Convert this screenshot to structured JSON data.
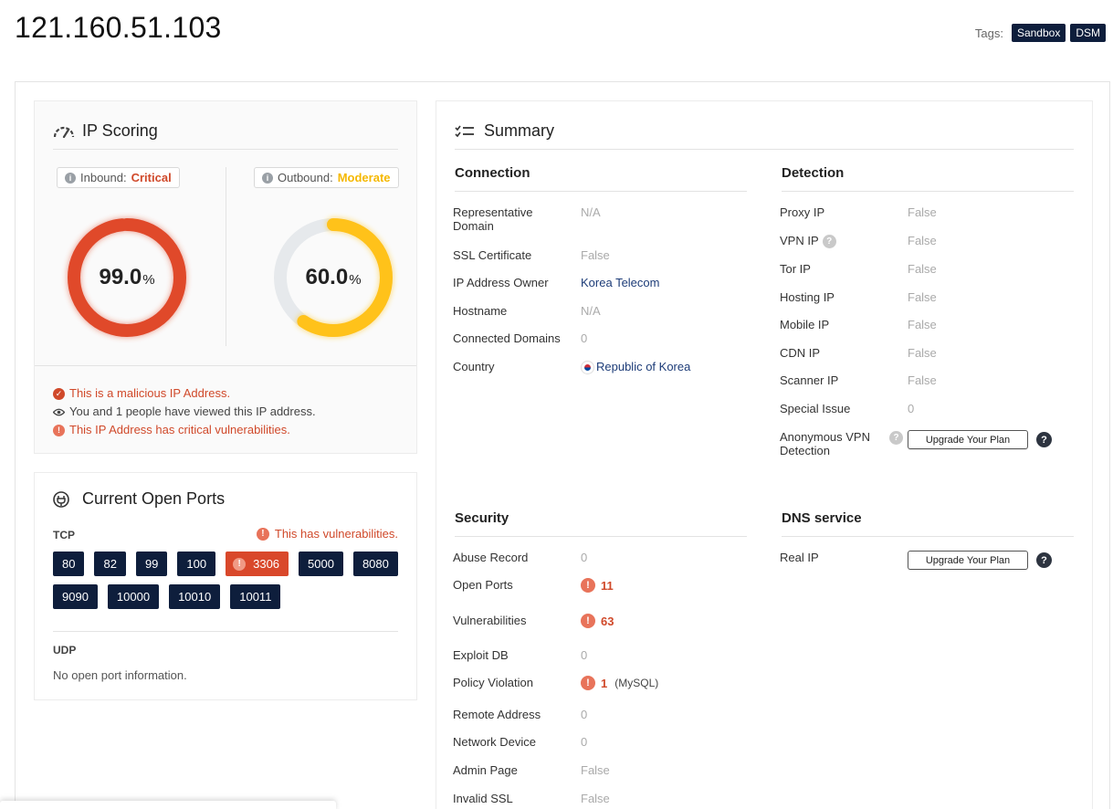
{
  "page": {
    "title": "121.160.51.103"
  },
  "tags": {
    "label": "Tags:",
    "items": [
      "Sandbox",
      "DSM"
    ]
  },
  "scoring": {
    "title": "IP Scoring",
    "inbound": {
      "label": "Inbound:",
      "level": "Critical",
      "score": "99.0",
      "unit": "%",
      "color": "#e0492a",
      "fraction": 0.99
    },
    "outbound": {
      "label": "Outbound:",
      "level": "Moderate",
      "score": "60.0",
      "unit": "%",
      "color": "#ffc21a",
      "fraction": 0.6
    },
    "notes": [
      {
        "icon": "check-circle-icon",
        "text": "This is a malicious IP Address.",
        "tone": "red"
      },
      {
        "icon": "eye-icon",
        "text": "You and 1 people have viewed this IP address.",
        "tone": "gray"
      },
      {
        "icon": "alert-circle-icon",
        "text": "This IP Address has critical vulnerabilities.",
        "tone": "red"
      }
    ]
  },
  "ports": {
    "title": "Current Open Ports",
    "tcp_label": "TCP",
    "vuln_note": "This has vulnerabilities.",
    "tcp": [
      {
        "port": "80",
        "vuln": false
      },
      {
        "port": "82",
        "vuln": false
      },
      {
        "port": "99",
        "vuln": false
      },
      {
        "port": "100",
        "vuln": false
      },
      {
        "port": "3306",
        "vuln": true
      },
      {
        "port": "5000",
        "vuln": false
      },
      {
        "port": "8080",
        "vuln": false
      },
      {
        "port": "9090",
        "vuln": false
      },
      {
        "port": "10000",
        "vuln": false
      },
      {
        "port": "10010",
        "vuln": false
      },
      {
        "port": "10011",
        "vuln": false
      }
    ],
    "udp_label": "UDP",
    "udp_empty": "No open port information."
  },
  "summary": {
    "title": "Summary",
    "connection": {
      "title": "Connection",
      "rows": [
        {
          "key": "Representative Domain",
          "value": "N/A"
        },
        {
          "key": "SSL Certificate",
          "value": "False"
        },
        {
          "key": "IP Address Owner",
          "value": "Korea Telecom"
        },
        {
          "key": "Hostname",
          "value": "N/A"
        },
        {
          "key": "Connected Domains",
          "value": "0"
        },
        {
          "key": "Country",
          "value": "Republic of Korea"
        }
      ]
    },
    "detection": {
      "title": "Detection",
      "rows": [
        {
          "key": "Proxy IP",
          "value": "False"
        },
        {
          "key": "VPN IP",
          "value": "False"
        },
        {
          "key": "Tor IP",
          "value": "False"
        },
        {
          "key": "Hosting IP",
          "value": "False"
        },
        {
          "key": "Mobile IP",
          "value": "False"
        },
        {
          "key": "CDN IP",
          "value": "False"
        },
        {
          "key": "Scanner IP",
          "value": "False"
        },
        {
          "key": "Special Issue",
          "value": "0"
        },
        {
          "key": "Anonymous VPN Detection",
          "value": "Upgrade Your Plan"
        }
      ]
    },
    "security": {
      "title": "Security",
      "rows": [
        {
          "key": "Abuse Record",
          "value": "0"
        },
        {
          "key": "Open Ports",
          "value": "11"
        },
        {
          "key": "Vulnerabilities",
          "value": "63"
        },
        {
          "key": "Exploit DB",
          "value": "0"
        },
        {
          "key": "Policy Violation",
          "value": "1",
          "extra": "(MySQL)"
        },
        {
          "key": "Remote Address",
          "value": "0"
        },
        {
          "key": "Network Device",
          "value": "0"
        },
        {
          "key": "Admin Page",
          "value": "False"
        },
        {
          "key": "Invalid SSL",
          "value": "False"
        }
      ]
    },
    "dns": {
      "title": "DNS service",
      "rows": [
        {
          "key": "Real IP",
          "value": "Upgrade Your Plan"
        }
      ]
    }
  },
  "icons": {
    "question": "?",
    "alert": "!",
    "info": "i"
  }
}
